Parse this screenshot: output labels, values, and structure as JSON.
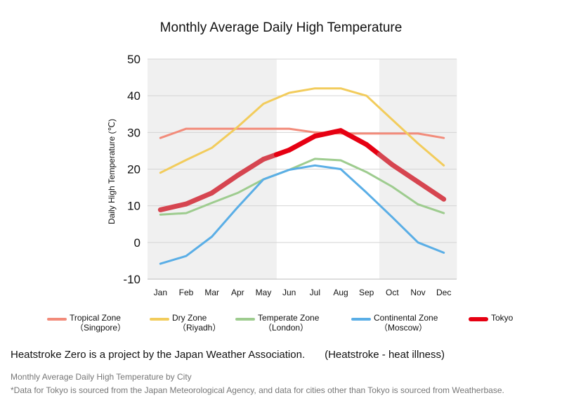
{
  "chart_data": {
    "type": "line",
    "title": "Monthly Average Daily High Temperature",
    "xlabel": "",
    "ylabel": "Daily High Temperature (℃)",
    "categories": [
      "Jan",
      "Feb",
      "Mar",
      "Apr",
      "May",
      "Jun",
      "Jul",
      "Aug",
      "Sep",
      "Oct",
      "Nov",
      "Dec"
    ],
    "ylim": [
      -10,
      50
    ],
    "yticks": [
      -10,
      0,
      10,
      20,
      30,
      40,
      50
    ],
    "grid": true,
    "shaded_months": [
      "Jan",
      "Feb",
      "Mar",
      "Apr",
      "May",
      "Oct",
      "Nov",
      "Dec"
    ],
    "series": [
      {
        "name": "Tropical Zone",
        "sub": "（Singpore）",
        "color": "#f28b7a",
        "width": 3,
        "values": [
          28.5,
          31,
          31,
          31,
          31,
          31,
          30,
          29.7,
          29.7,
          29.7,
          29.7,
          28.5
        ]
      },
      {
        "name": "Dry Zone",
        "sub": "（Riyadh）",
        "color": "#f2cc5c",
        "width": 3,
        "values": [
          19,
          22.5,
          25.8,
          31.5,
          37.8,
          40.8,
          42,
          42,
          40,
          33.5,
          27,
          21
        ]
      },
      {
        "name": "Temperate Zone",
        "sub": "（London）",
        "color": "#9ecc8f",
        "width": 3,
        "values": [
          7.6,
          8,
          10.8,
          13.5,
          17.2,
          19.8,
          22.8,
          22.4,
          19.2,
          15.2,
          10.4,
          8
        ]
      },
      {
        "name": "Continental Zone",
        "sub": "（Moscow）",
        "color": "#5aaee6",
        "width": 3,
        "values": [
          -5.8,
          -3.7,
          1.6,
          9.6,
          17.2,
          19.8,
          21,
          20,
          13.6,
          6.9,
          0,
          -2.8
        ]
      },
      {
        "name": "Tokyo",
        "sub": "",
        "color": "#e60012",
        "color_shaded": "#d64550",
        "width": 7,
        "values": [
          8.9,
          10.5,
          13.5,
          18.3,
          22.7,
          25.2,
          29,
          30.5,
          26.7,
          21.2,
          16.5,
          11.8
        ]
      }
    ]
  },
  "note": {
    "main": "Heatstroke Zero is a project by the Japan Weather Association.",
    "paren": "(Heatstroke - heat illness)"
  },
  "source": {
    "caption": "Monthly Average Daily High Temperature by City",
    "footnote": "*Data for Tokyo is sourced from the Japan Meteorological Agency, and data for cities other than Tokyo is sourced from Weatherbase."
  }
}
